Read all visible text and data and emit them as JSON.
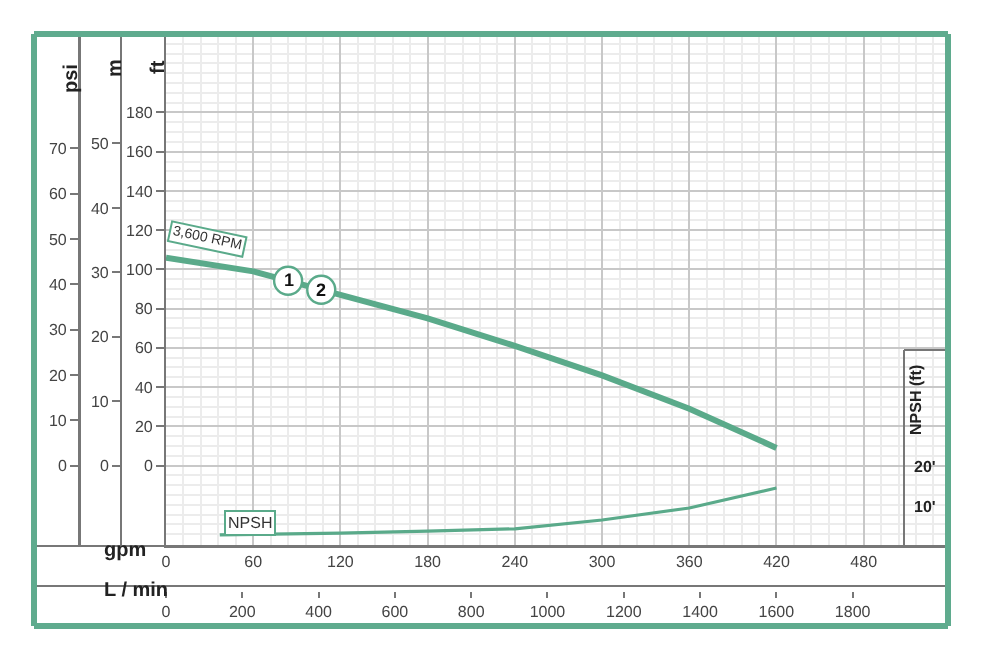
{
  "chart_data": [
    {
      "type": "line",
      "xlabel": "gpm",
      "x2label": "L / min",
      "ylabel": "ft",
      "y2label": "psi",
      "y3label": "m",
      "xlim": [
        0,
        538
      ],
      "xticks": [
        0,
        60,
        120,
        180,
        240,
        300,
        360,
        420,
        480
      ],
      "x2lim": [
        0,
        2050
      ],
      "x2ticks": [
        0,
        200,
        400,
        600,
        800,
        1000,
        1200,
        1400,
        1600,
        1800
      ],
      "ylim": [
        -41,
        220
      ],
      "yticks": [
        0,
        20,
        40,
        60,
        80,
        100,
        120,
        140,
        160,
        180
      ],
      "y2lim": [
        -17.7,
        95.2
      ],
      "y2ticks": [
        0,
        10,
        20,
        30,
        40,
        50,
        60,
        70
      ],
      "y3lim": [
        -12.5,
        67
      ],
      "y3ticks": [
        0,
        10,
        20,
        30,
        40,
        50
      ],
      "grid": true,
      "series": [
        {
          "name": "3,600 RPM",
          "color": "#5aaa8a",
          "x": [
            0,
            60,
            120,
            180,
            240,
            300,
            360,
            420
          ],
          "values": [
            106,
            99,
            87,
            75,
            61,
            46,
            29,
            9
          ]
        }
      ],
      "annotations": [
        "1",
        "2"
      ]
    },
    {
      "type": "line",
      "ylabel": "NPSH (ft)",
      "xlim": [
        0,
        538
      ],
      "ylim": [
        0,
        49
      ],
      "yticks": [
        {
          "value": 10,
          "label": "10'"
        },
        {
          "value": 20,
          "label": "20'"
        }
      ],
      "tick_labels": "y",
      "series": [
        {
          "name": "NPSH",
          "color": "#5aaa8a",
          "x": [
            37,
            120,
            180,
            240,
            300,
            360,
            420
          ],
          "values": [
            2.8,
            3.2,
            3.7,
            4.3,
            6.5,
            9.5,
            14.5
          ]
        }
      ]
    }
  ]
}
